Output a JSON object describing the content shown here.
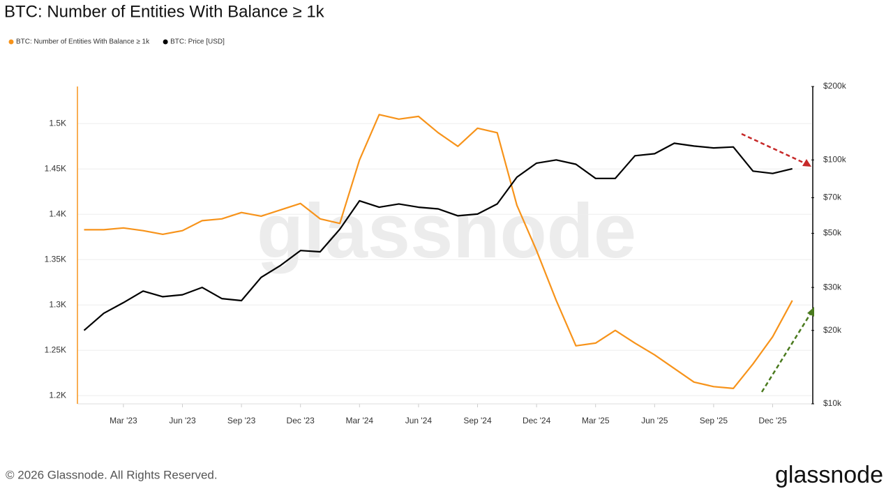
{
  "chart_data": {
    "type": "line",
    "title": "BTC: Number of Entities With Balance ≥ 1k",
    "categories": [
      null,
      null,
      "Mar '23",
      null,
      null,
      "Jun '23",
      null,
      null,
      "Sep '23",
      null,
      null,
      "Dec '23",
      null,
      null,
      "Mar '24",
      null,
      null,
      "Jun '24",
      null,
      null,
      "Sep '24",
      null,
      null,
      "Dec '24",
      null,
      null,
      "Mar '25",
      null,
      null,
      "Jun '25",
      null,
      null,
      "Sep '25",
      null,
      null,
      "Dec '25",
      null
    ],
    "series": [
      {
        "name": "BTC: Number of Entities With Balance ≥ 1k",
        "color": "#f7931a",
        "axis": "y",
        "values": [
          1383,
          1383,
          1385,
          1382,
          1378,
          1382,
          1393,
          1395,
          1402,
          1398,
          1405,
          1412,
          1395,
          1390,
          1460,
          1510,
          1505,
          1508,
          1490,
          1475,
          1495,
          1490,
          1410,
          1360,
          1305,
          1255,
          1258,
          1272,
          1258,
          1245,
          1230,
          1215,
          1210,
          1208,
          1235,
          1265,
          1305
        ]
      },
      {
        "name": "BTC: Price [USD]",
        "color": "#000000",
        "axis": "y2",
        "values": [
          20000,
          23500,
          26000,
          29000,
          27500,
          28000,
          30000,
          27000,
          26500,
          33000,
          37000,
          42500,
          42000,
          52000,
          68000,
          64000,
          66000,
          64000,
          63000,
          59000,
          60000,
          66000,
          85000,
          97000,
          100000,
          96000,
          84000,
          84000,
          104000,
          106000,
          117000,
          114000,
          112000,
          113000,
          90000,
          88000,
          92000
        ]
      }
    ],
    "ylim": [
      1191,
      1541
    ],
    "yticks": [
      {
        "value": 1200,
        "label": "1.2K"
      },
      {
        "value": 1250,
        "label": "1.25K"
      },
      {
        "value": 1300,
        "label": "1.3K"
      },
      {
        "value": 1350,
        "label": "1.35K"
      },
      {
        "value": 1400,
        "label": "1.4K"
      },
      {
        "value": 1450,
        "label": "1.45K"
      },
      {
        "value": 1500,
        "label": "1.5K"
      }
    ],
    "y2lim": [
      10000,
      200000
    ],
    "y2log": true,
    "y2ticks": [
      {
        "value": 10000,
        "label": "$10k"
      },
      {
        "value": 20000,
        "label": "$20k"
      },
      {
        "value": 30000,
        "label": "$30k"
      },
      {
        "value": 50000,
        "label": "$50k"
      },
      {
        "value": 70000,
        "label": "$70k"
      },
      {
        "value": 100000,
        "label": "$100k"
      },
      {
        "value": 200000,
        "label": "$200k"
      }
    ],
    "grid": true
  },
  "watermark": "glassnode",
  "footer": "© 2026 Glassnode. All Rights Reserved.",
  "logo": "glassnode"
}
